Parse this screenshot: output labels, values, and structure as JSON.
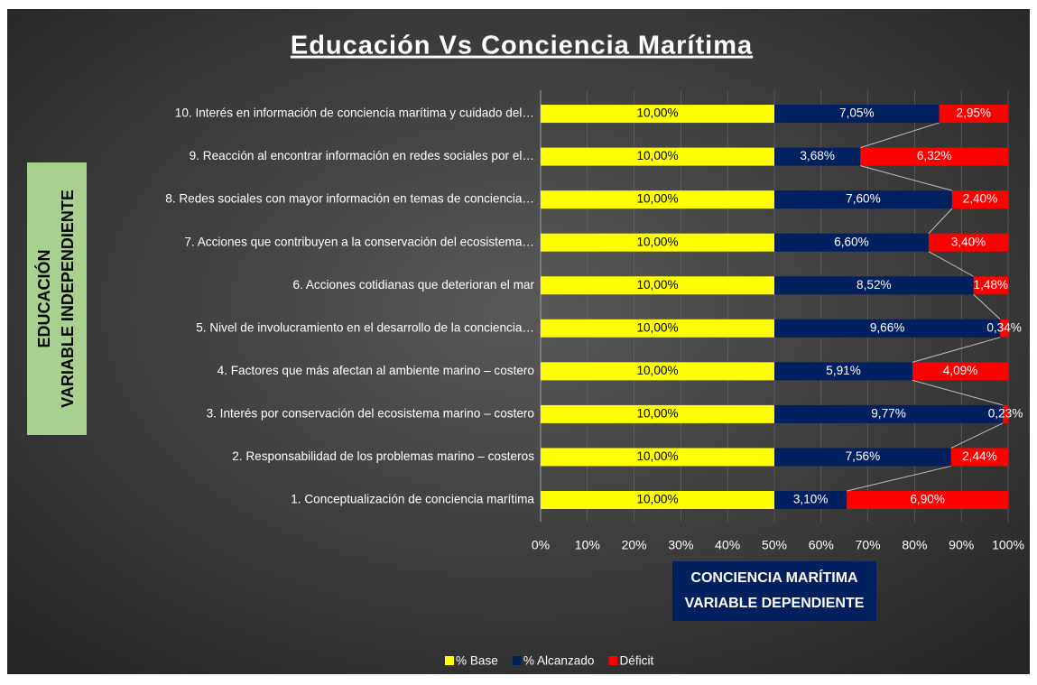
{
  "chart_data": {
    "type": "bar",
    "orientation": "horizontal",
    "stacked": "percent",
    "title": "Educación Vs Conciencia Marítima",
    "xlabel": [
      "CONCIENCIA MARÍTIMA",
      "VARIABLE DEPENDIENTE"
    ],
    "ylabel": [
      "EDUCACIÓN",
      "VARIABLE INDEPENDIENTE"
    ],
    "categories": [
      "1.   Conceptualización de conciencia marítima",
      "2.   Responsabilidad de los problemas marino – costeros",
      "3.   Interés por conservación del ecosistema marino – costero",
      "4.   Factores que más afectan al ambiente marino – costero",
      "5.   Nivel de involucramiento en el desarrollo de la conciencia…",
      "6.   Acciones cotidianas que deterioran el mar",
      "7.   Acciones que contribuyen a la conservación del ecosistema…",
      "8.   Redes sociales con mayor información en temas de conciencia…",
      "9.   Reacción al encontrar información en redes sociales por el…",
      "10. Interés en información de conciencia marítima y cuidado del…"
    ],
    "series": [
      {
        "name": "% Base",
        "color": "#ffff00",
        "label_color": "#000000",
        "values": [
          10,
          10,
          10,
          10,
          10,
          10,
          10,
          10,
          10,
          10
        ],
        "value_labels": [
          "10,00%",
          "10,00%",
          "10,00%",
          "10,00%",
          "10,00%",
          "10,00%",
          "10,00%",
          "10,00%",
          "10,00%",
          "10,00%"
        ]
      },
      {
        "name": "% Alcanzado",
        "color": "#002060",
        "label_color": "#ffffff",
        "values": [
          3.1,
          7.56,
          9.77,
          5.91,
          9.66,
          8.52,
          6.6,
          7.6,
          3.68,
          7.05
        ],
        "value_labels": [
          "3,10%",
          "7,56%",
          "9,77%",
          "5,91%",
          "9,66%",
          "8,52%",
          "6,60%",
          "7,60%",
          "3,68%",
          "7,05%"
        ]
      },
      {
        "name": "Déficit",
        "color": "#ff0000",
        "label_color": "#ffffff",
        "values": [
          6.9,
          2.44,
          0.23,
          4.09,
          0.34,
          1.48,
          3.4,
          2.4,
          6.32,
          2.95
        ],
        "value_labels": [
          "6,90%",
          "2,44%",
          "0,23%",
          "4,09%",
          "0,34%",
          "1,48%",
          "3,40%",
          "2,40%",
          "6,32%",
          "2,95%"
        ]
      }
    ],
    "xlim": [
      0,
      100
    ],
    "xticks": [
      {
        "value": 0,
        "label": "0%"
      },
      {
        "value": 10,
        "label": "10%"
      },
      {
        "value": 20,
        "label": "20%"
      },
      {
        "value": 30,
        "label": "30%"
      },
      {
        "value": 40,
        "label": "40%"
      },
      {
        "value": 50,
        "label": "50%"
      },
      {
        "value": 60,
        "label": "60%"
      },
      {
        "value": 70,
        "label": "70%"
      },
      {
        "value": 80,
        "label": "80%"
      },
      {
        "value": 90,
        "label": "90%"
      },
      {
        "value": 100,
        "label": "100%"
      }
    ],
    "grid": true,
    "series_lines": true,
    "legend": "bottom"
  }
}
